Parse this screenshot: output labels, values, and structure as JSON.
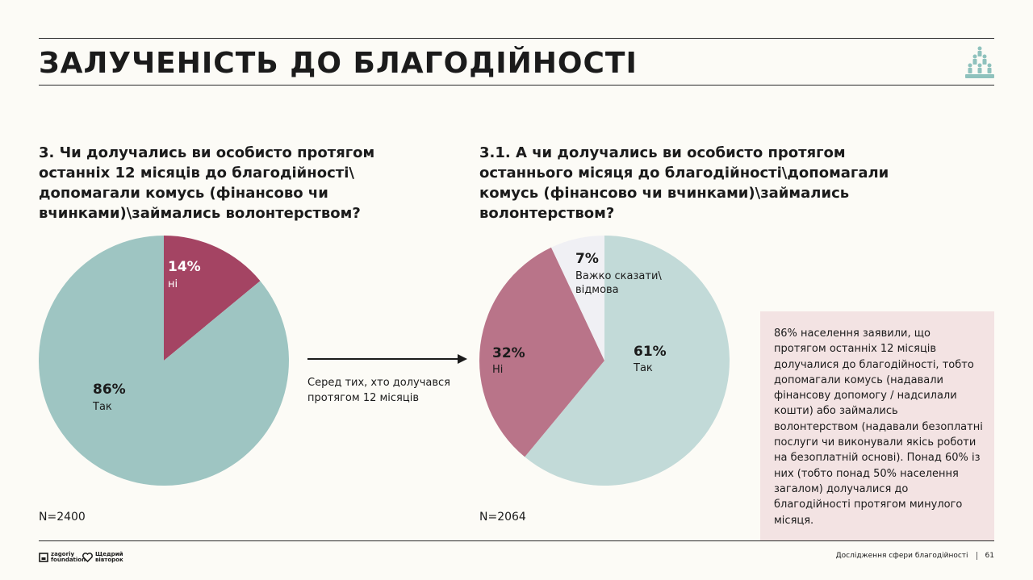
{
  "header": {
    "title": "ЗАЛУЧЕНІСТЬ ДО БЛАГОДІЙНОСТІ",
    "icon": "people-group-icon"
  },
  "left": {
    "question": "3. Чи долучались ви особисто протягом останніх 12 місяців до благодійності\\ допомагали комусь (фінансово чи вчинками)\\займались волонтерством?",
    "sample": "N=2400"
  },
  "right": {
    "question": "3.1. А чи долучались ви особисто протягом останнього місяця до благодійності\\допомагали комусь (фінансово чи вчинками)\\займались волонтерством?",
    "sample": "N=2064"
  },
  "connector": {
    "text": "Серед тих, хто долучався протягом 12 місяців"
  },
  "chart_data": [
    {
      "type": "pie",
      "title": "3. Чи долучались ви особисто протягом останніх 12 місяців до благодійності",
      "slices": [
        {
          "label": "ні",
          "value": 14,
          "pct_label": "14%",
          "color": "#a44463"
        },
        {
          "label": "Так",
          "value": 86,
          "pct_label": "86%",
          "color": "#9ec5c2"
        }
      ]
    },
    {
      "type": "pie",
      "title": "3.1. А чи долучались ви особисто протягом останнього місяця до благодійності",
      "slices": [
        {
          "label": "Так",
          "value": 61,
          "pct_label": "61%",
          "color": "#c2dad8"
        },
        {
          "label": "Ні",
          "value": 32,
          "pct_label": "32%",
          "color": "#b97489"
        },
        {
          "label": "Важко сказати\\ відмова",
          "value": 7,
          "pct_label": "7%",
          "color": "#f0f0f4"
        }
      ]
    }
  ],
  "note": {
    "text": "86% населення заявили, що протягом останніх 12 місяців долучалися до благодійності, тобто допомагали комусь (надавали фінансову допомогу / надсилали кошти) або займались волонтерством (надавали безоплатні послуги чи виконували якісь роботи на безоплатній основі). Понад 60% із них (тобто понад 50% населення загалом) долучалися до благодійності протягом минулого місяця."
  },
  "footer": {
    "brand1_line1": "zagoriy",
    "brand1_line2": "foundation",
    "brand2_line1": "Щедрий",
    "brand2_line2": "вівторок",
    "report": "Дослідження сфери благодійності",
    "page": "61"
  }
}
